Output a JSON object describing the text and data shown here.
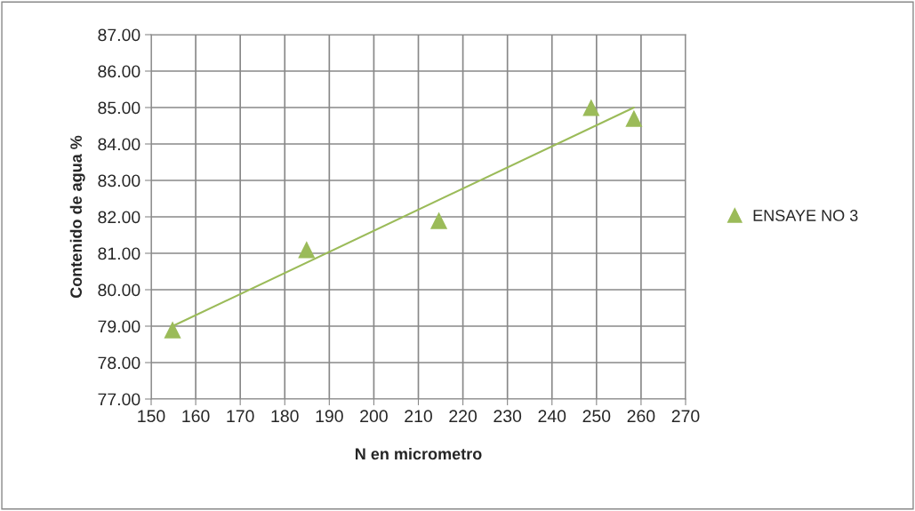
{
  "chart_data": {
    "type": "scatter",
    "xlabel": "N en micrometro",
    "ylabel": "Contenido de agua %",
    "series": [
      {
        "name": "ENSAYE NO 3",
        "color": "#9bbb59",
        "marker": "triangle",
        "x": [
          154.8,
          184.9,
          214.6,
          248.8,
          258.4
        ],
        "values": [
          78.9,
          81.1,
          81.9,
          85.0,
          84.7
        ]
      },
      {
        "type": "line",
        "color": "#9bbb59",
        "marker": "none",
        "x": [
          154.8,
          258.4
        ],
        "values": [
          79.0,
          85.0
        ]
      }
    ],
    "xlim": [
      150,
      270
    ],
    "xticks": [
      150,
      160,
      170,
      180,
      190,
      200,
      210,
      220,
      230,
      240,
      250,
      260,
      270
    ],
    "ylim": [
      77,
      87
    ],
    "yticks": [
      {
        "value": 77,
        "label": "77.00"
      },
      {
        "value": 78,
        "label": "78.00"
      },
      {
        "value": 79,
        "label": "79.00"
      },
      {
        "value": 80,
        "label": "80.00"
      },
      {
        "value": 81,
        "label": "81.00"
      },
      {
        "value": 82,
        "label": "82.00"
      },
      {
        "value": 83,
        "label": "83.00"
      },
      {
        "value": 84,
        "label": "84.00"
      },
      {
        "value": 85,
        "label": "85.00"
      },
      {
        "value": 86,
        "label": "86.00"
      },
      {
        "value": 87,
        "label": "87.00"
      }
    ],
    "grid": true,
    "legend": "right"
  }
}
